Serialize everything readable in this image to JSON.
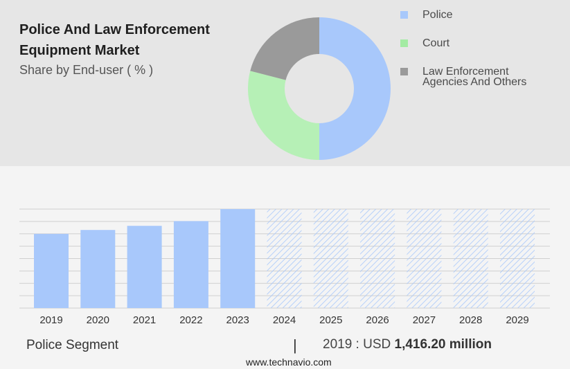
{
  "header": {
    "title_line1": "Police And Law Enforcement",
    "title_line2": "Equipment Market",
    "subtitle": "Share by End-user ( % )"
  },
  "legend": [
    {
      "label_line1": "Police",
      "label_line2": "",
      "color": "#a8c8fb"
    },
    {
      "label_line1": "Court",
      "label_line2": "",
      "color": "#a3eba3"
    },
    {
      "label_line1": "Law Enforcement",
      "label_line2": "Agencies And Others",
      "color": "#9a9a9a"
    }
  ],
  "footer": {
    "segment_label": "Police Segment",
    "separator": "|",
    "year_text": "2019 : USD",
    "amount_text": "1,416.20 million",
    "source": "www.technavio.com"
  },
  "chart_data": [
    {
      "type": "pie",
      "variant": "donut",
      "labels": [
        "Police",
        "Court",
        "Law Enforcement Agencies And Others"
      ],
      "values": [
        50,
        29,
        21
      ],
      "colors": [
        "#a8c8fb",
        "#b6f0b6",
        "#9a9a9a"
      ]
    },
    {
      "type": "bar",
      "categories": [
        "2019",
        "2020",
        "2021",
        "2022",
        "2023",
        "2024",
        "2025",
        "2026",
        "2027",
        "2028",
        "2029"
      ],
      "values": [
        1416.2,
        1491,
        1570,
        1660,
        1890,
        null,
        null,
        null,
        null,
        null,
        null
      ],
      "forecast_categories": [
        "2024",
        "2025",
        "2026",
        "2027",
        "2028",
        "2029"
      ],
      "forecast_fill": "hatched",
      "bar_color": "#a8c8fb",
      "grid": true,
      "ylim": [
        0,
        1890
      ]
    }
  ]
}
